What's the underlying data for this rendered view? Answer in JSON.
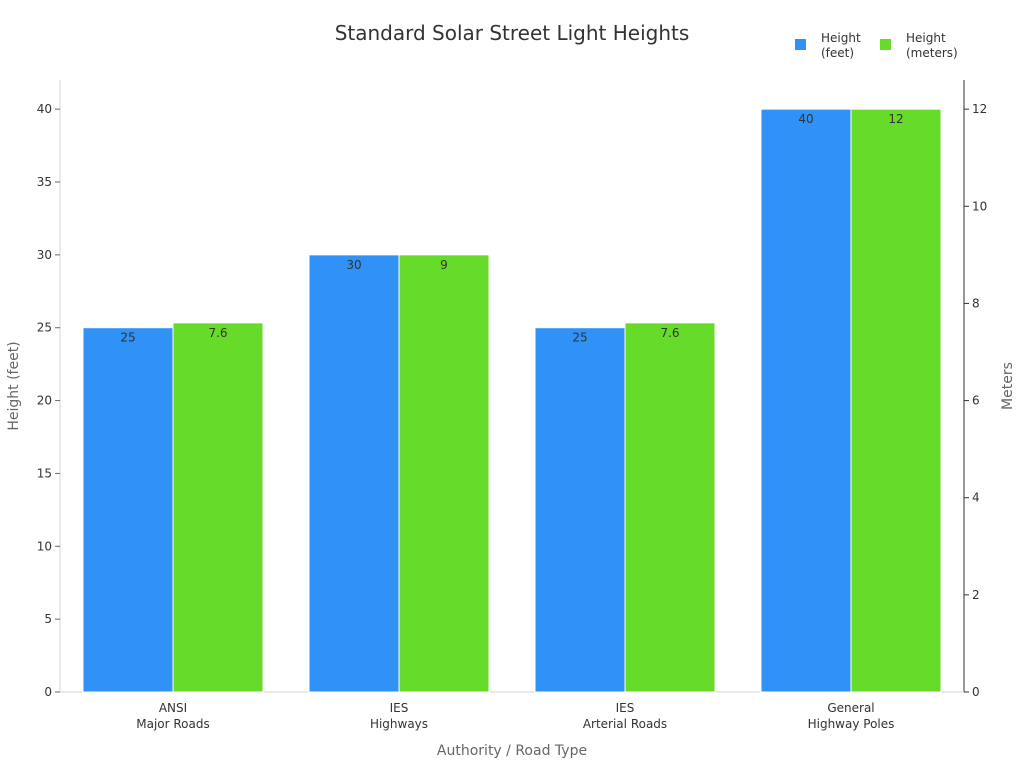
{
  "chart_data": {
    "type": "bar",
    "title": "Standard Solar Street Light Heights",
    "xlabel": "Authority / Road Type",
    "ylabel": "Height (feet)",
    "y2label": "Meters",
    "categories": [
      [
        "ANSI",
        "Major Roads"
      ],
      [
        "IES",
        "Highways"
      ],
      [
        "IES",
        "Arterial Roads"
      ],
      [
        "General",
        "Highway Poles"
      ]
    ],
    "series": [
      {
        "name": [
          "Height",
          "(feet)"
        ],
        "axis": "left",
        "color": "#3091f6",
        "values": [
          25,
          30,
          25,
          40
        ],
        "labels": [
          "25",
          "30",
          "25",
          "40"
        ]
      },
      {
        "name": [
          "Height",
          "(meters)"
        ],
        "axis": "right",
        "color": "#66db2a",
        "values": [
          7.6,
          9,
          7.6,
          12
        ],
        "labels": [
          "7.6",
          "9",
          "7.6",
          "12"
        ]
      }
    ],
    "ylim": [
      0,
      42
    ],
    "y2lim": [
      0,
      12.6
    ],
    "yticks": [
      0,
      5,
      10,
      15,
      20,
      25,
      30,
      35,
      40
    ],
    "y2ticks": [
      0,
      2,
      4,
      6,
      8,
      10,
      12
    ],
    "grid": false,
    "legend_position": "top-right"
  }
}
